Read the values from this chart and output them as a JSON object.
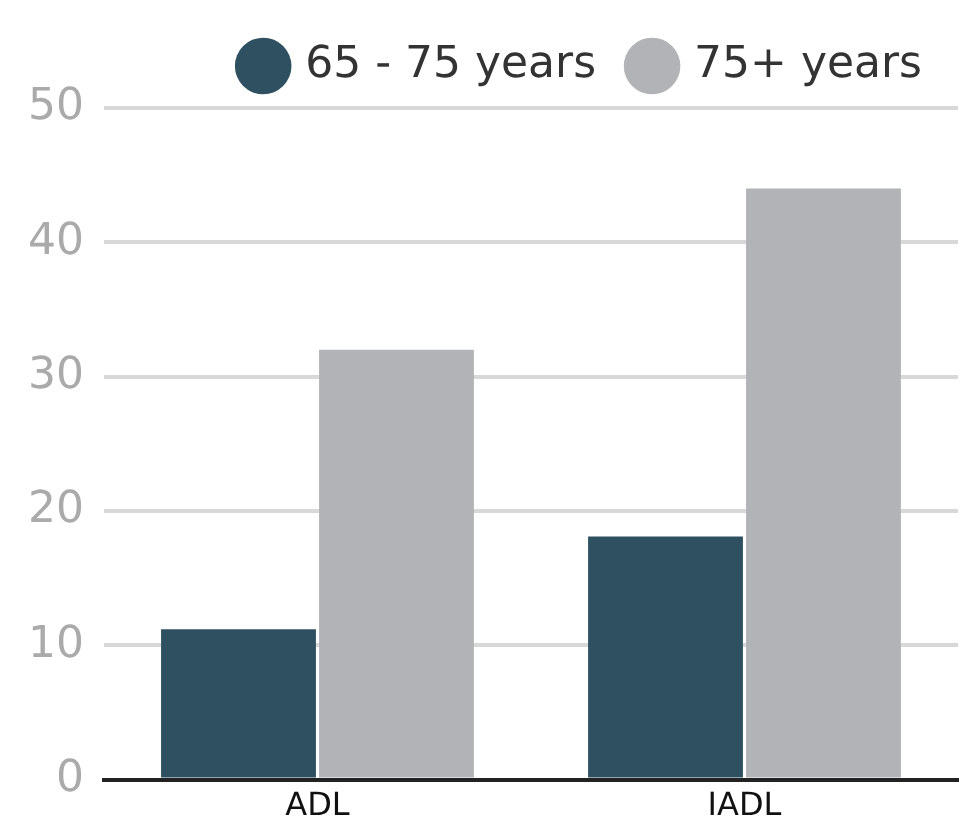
{
  "chart_data": {
    "type": "bar",
    "categories": [
      "ADL",
      "IADL"
    ],
    "series": [
      {
        "name": "65 - 75 years",
        "color": "#2e5060",
        "values": [
          11.2,
          18.1
        ]
      },
      {
        "name": "75+ years",
        "color": "#b2b3b7",
        "values": [
          32,
          44
        ]
      }
    ],
    "ylim": [
      0,
      50
    ],
    "yticks": [
      0,
      10,
      20,
      30,
      40,
      50
    ],
    "grid": "y",
    "legend": "top"
  }
}
